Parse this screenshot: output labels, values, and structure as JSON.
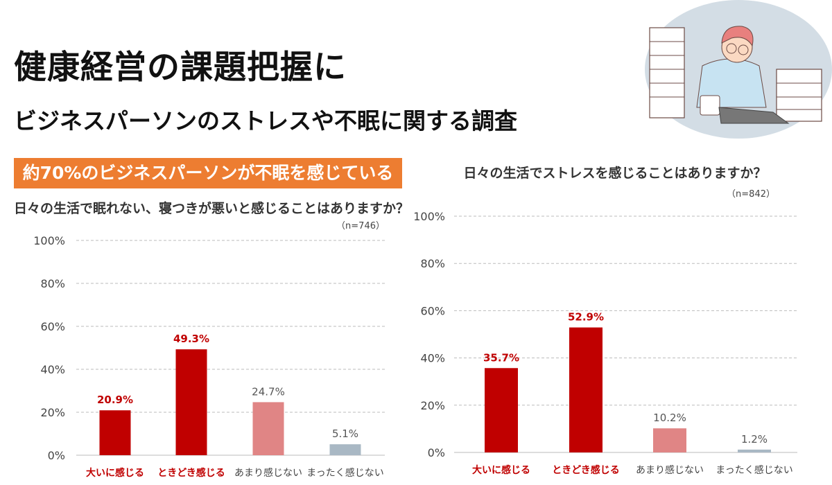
{
  "header": {
    "title": "健康経営の課題把握に",
    "subtitle": "ビジネスパーソンのストレスや不眠に関する調査",
    "banner": "約70%のビジネスパーソンが不眠を感じている"
  },
  "colors": {
    "banner": "#ed7d31",
    "strong": "#c00000",
    "medium": "#c00000",
    "weak": "#e08585",
    "none": "#a9b8c4",
    "highlight_text": "#c00000"
  },
  "chart_data": [
    {
      "type": "bar",
      "title": "日々の生活で眠れない、寝つきが悪いと感じることはありますか？",
      "note": "（n=746）",
      "categories": [
        "大いに感じる",
        "ときどき感じる",
        "あまり感じない",
        "まったく感じない"
      ],
      "values": [
        20.9,
        49.3,
        24.7,
        5.1
      ],
      "value_labels": [
        "20.9%",
        "49.3%",
        "24.7%",
        "5.1%"
      ],
      "highlight": [
        true,
        true,
        false,
        false
      ],
      "yticks": [
        "0%",
        "20%",
        "40%",
        "60%",
        "80%",
        "100%"
      ],
      "ylim": [
        0,
        100
      ],
      "grid": true
    },
    {
      "type": "bar",
      "title": "日々の生活でストレスを感じることはありますか？",
      "note": "（n=842）",
      "categories": [
        "大いに感じる",
        "ときどき感じる",
        "あまり感じない",
        "まったく感じない"
      ],
      "values": [
        35.7,
        52.9,
        10.2,
        1.2
      ],
      "value_labels": [
        "35.7%",
        "52.9%",
        "10.2%",
        "1.2%"
      ],
      "highlight": [
        true,
        true,
        false,
        false
      ],
      "yticks": [
        "0%",
        "20%",
        "40%",
        "60%",
        "80%",
        "100%"
      ],
      "ylim": [
        0,
        100
      ],
      "grid": true
    }
  ]
}
